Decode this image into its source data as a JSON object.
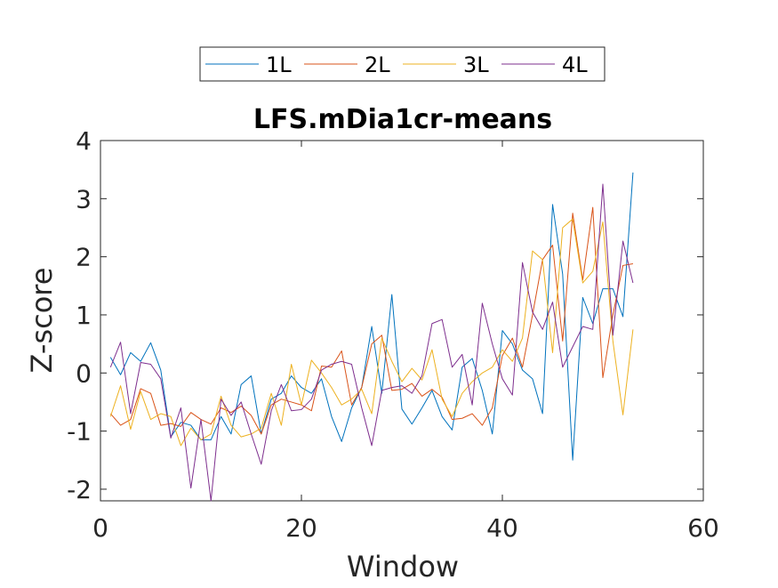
{
  "chart_data": {
    "type": "line",
    "title": "LFS.mDia1cr-means",
    "xlabel": "Window",
    "ylabel": "Z-score",
    "xlim": [
      0,
      60
    ],
    "ylim": [
      -2.2,
      4
    ],
    "xticks": [
      0,
      20,
      40,
      60
    ],
    "yticks": [
      -2,
      -1,
      0,
      1,
      2,
      3,
      4
    ],
    "xtick_labels": [
      "0",
      "20",
      "40",
      "60"
    ],
    "ytick_labels": [
      "-2",
      "-1",
      "0",
      "1",
      "2",
      "3",
      "4"
    ],
    "grid": false,
    "legend_placement": "top-center, horizontal, outside",
    "x": [
      1,
      2,
      3,
      4,
      5,
      6,
      7,
      8,
      9,
      10,
      11,
      12,
      13,
      14,
      15,
      16,
      17,
      18,
      19,
      20,
      21,
      22,
      23,
      24,
      25,
      26,
      27,
      28,
      29,
      30,
      31,
      32,
      33,
      34,
      35,
      36,
      37,
      38,
      39,
      40,
      41,
      42,
      43,
      44,
      45,
      46,
      47,
      48,
      49,
      50,
      51,
      52,
      53
    ],
    "series": [
      {
        "name": "1L",
        "color": "#0072BD",
        "values": [
          0.27,
          -0.03,
          0.35,
          0.2,
          0.52,
          0.05,
          -1.1,
          -0.85,
          -0.9,
          -1.15,
          -1.15,
          -0.75,
          -1.05,
          -0.2,
          -0.05,
          -1.05,
          -0.45,
          -0.35,
          -0.05,
          -0.25,
          -0.35,
          -0.1,
          -0.75,
          -1.18,
          -0.6,
          -0.25,
          0.8,
          -0.35,
          1.35,
          -0.62,
          -0.88,
          -0.6,
          -0.3,
          -0.75,
          -0.98,
          0.1,
          0.25,
          -0.3,
          -1.05,
          0.73,
          0.5,
          0.05,
          -0.1,
          -0.7,
          2.9,
          1.7,
          -1.5,
          1.3,
          0.85,
          1.45,
          1.45,
          0.97,
          3.45
        ]
      },
      {
        "name": "2L",
        "color": "#D95319",
        "values": [
          -0.7,
          -0.9,
          -0.8,
          -0.27,
          -0.35,
          -0.9,
          -0.87,
          -0.92,
          -0.68,
          -0.8,
          -0.88,
          -0.6,
          -0.68,
          -0.57,
          -0.73,
          -1.05,
          -0.55,
          -0.45,
          -0.5,
          -0.55,
          -0.65,
          0.12,
          0.1,
          0.38,
          -0.55,
          -0.25,
          0.5,
          0.65,
          -0.3,
          -0.28,
          -0.18,
          -0.4,
          -0.28,
          -0.42,
          -0.8,
          -0.78,
          -0.7,
          -0.9,
          -0.6,
          0.3,
          0.6,
          0.1,
          1.0,
          1.95,
          2.2,
          0.55,
          2.75,
          1.6,
          2.85,
          -0.08,
          1.0,
          1.85,
          1.88
        ]
      },
      {
        "name": "3L",
        "color": "#EDB120",
        "values": [
          -0.75,
          -0.22,
          -0.97,
          -0.32,
          -0.8,
          -0.7,
          -0.75,
          -1.25,
          -0.95,
          -1.15,
          -1.05,
          -0.4,
          -0.9,
          -1.1,
          -1.05,
          -0.95,
          -0.35,
          -0.9,
          0.15,
          -0.55,
          0.22,
          0.0,
          -0.25,
          -0.55,
          -0.45,
          -0.28,
          -0.7,
          0.6,
          0.2,
          -0.15,
          0.08,
          -0.12,
          0.4,
          -0.45,
          -0.75,
          -0.35,
          -0.15,
          0.0,
          0.1,
          0.4,
          0.2,
          0.6,
          2.1,
          1.95,
          0.35,
          2.5,
          2.65,
          1.55,
          1.75,
          2.6,
          0.55,
          -0.72,
          0.75
        ]
      },
      {
        "name": "4L",
        "color": "#7E2F8E",
        "values": [
          0.1,
          0.53,
          -0.7,
          0.18,
          0.15,
          -0.1,
          -1.12,
          -0.6,
          -1.98,
          -0.8,
          -2.2,
          -0.45,
          -0.73,
          -0.5,
          -1.05,
          -1.57,
          -0.65,
          -0.2,
          -0.65,
          -0.63,
          -0.45,
          0.05,
          0.15,
          0.2,
          0.15,
          -0.6,
          -1.25,
          -0.3,
          -0.25,
          -0.22,
          -0.35,
          -0.05,
          0.85,
          0.92,
          0.1,
          0.32,
          -0.55,
          1.2,
          0.5,
          -0.1,
          -0.38,
          1.9,
          1.05,
          0.75,
          1.22,
          0.1,
          0.45,
          0.8,
          0.75,
          3.25,
          0.65,
          2.27,
          1.55
        ]
      }
    ]
  }
}
